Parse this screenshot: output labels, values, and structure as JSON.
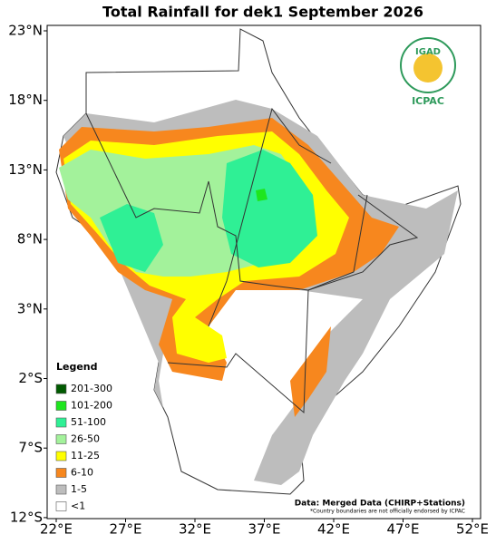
{
  "title": "Total Rainfall for dek1 September 2026",
  "lat_labels": [
    "23°N",
    "18°N",
    "13°N",
    "8°N",
    "3°N",
    "2°S",
    "7°S",
    "12°S"
  ],
  "lon_labels": [
    "22°E",
    "27°E",
    "32°E",
    "37°E",
    "42°E",
    "47°E",
    "52°E"
  ],
  "logo": {
    "name": "IGAD",
    "center": "ICPAC"
  },
  "legend": {
    "title": "Legend",
    "items": [
      {
        "label": "201-300",
        "color": "#005a00"
      },
      {
        "label": "101-200",
        "color": "#1ee61e"
      },
      {
        "label": "51-100",
        "color": "#2ff095"
      },
      {
        "label": "26-50",
        "color": "#a3f29b"
      },
      {
        "label": "11-25",
        "color": "#ffff00"
      },
      {
        "label": "6-10",
        "color": "#f7871e"
      },
      {
        "label": "1-5",
        "color": "#bdbdbd"
      },
      {
        "label": "<1",
        "color": "#ffffff"
      }
    ]
  },
  "source": "Data: Merged Data (CHIRP+Stations)",
  "disclaimer": "*Country boundaries are not officially endorsed by ICPAC"
}
